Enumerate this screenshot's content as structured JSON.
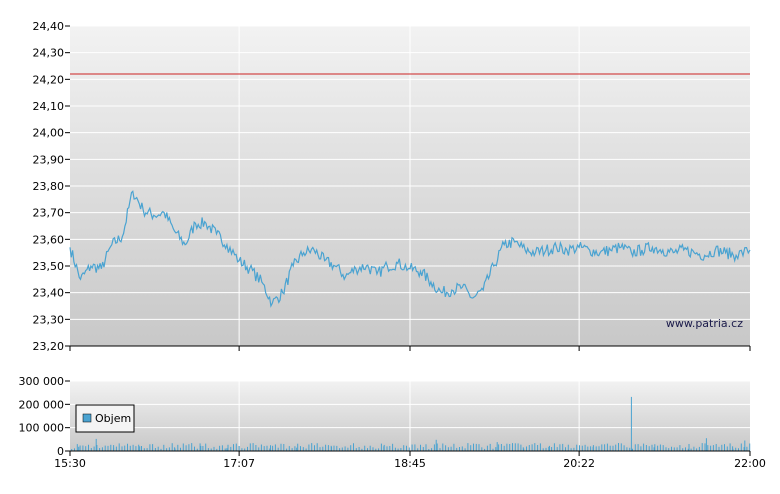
{
  "watermark": "www.patria.cz",
  "colors": {
    "price_line": "#4aa3d1",
    "reference_line": "#cc2222",
    "volume_bar": "#4aa3d1",
    "legend_swatch": "#4aa3d1",
    "gridline": "#ffffff",
    "plot_bg_top": "#f2f2f2",
    "plot_bg_bottom": "#c8c8c8"
  },
  "chart_data": [
    {
      "type": "line",
      "name": "price",
      "ylim": [
        23.2,
        24.4
      ],
      "yticks": [
        23.2,
        23.3,
        23.4,
        23.5,
        23.6,
        23.7,
        23.8,
        23.9,
        24.0,
        24.1,
        24.2,
        24.3,
        24.4
      ],
      "ytick_labels": [
        "23,20",
        "23,30",
        "23,40",
        "23,50",
        "23,60",
        "23,70",
        "23,80",
        "23,90",
        "24,00",
        "24,10",
        "24,20",
        "24,30",
        "24,40"
      ],
      "reference_value": 24.22,
      "x_domain_minutes": [
        930,
        1320
      ],
      "xgrid_minutes": [
        1027,
        1125,
        1222
      ],
      "x": [
        "15:30",
        "15:36",
        "15:42",
        "15:48",
        "15:54",
        "16:00",
        "16:06",
        "16:12",
        "16:18",
        "16:24",
        "16:30",
        "16:36",
        "16:42",
        "16:48",
        "16:54",
        "17:00",
        "17:07",
        "17:13",
        "17:20",
        "17:26",
        "17:32",
        "17:38",
        "17:44",
        "17:50",
        "17:56",
        "18:02",
        "18:08",
        "18:14",
        "18:20",
        "18:26",
        "18:32",
        "18:38",
        "18:45",
        "18:51",
        "18:57",
        "19:03",
        "19:09",
        "19:15",
        "19:21",
        "19:27",
        "19:33",
        "19:39",
        "19:45",
        "19:51",
        "19:57",
        "20:03",
        "20:09",
        "20:15",
        "20:22",
        "20:28",
        "20:34",
        "20:40",
        "20:46",
        "20:52",
        "20:58",
        "21:04",
        "21:10",
        "21:16",
        "21:22",
        "21:28",
        "21:34",
        "21:40",
        "21:46",
        "21:52",
        "22:00"
      ],
      "y": [
        23.57,
        23.45,
        23.5,
        23.49,
        23.58,
        23.61,
        23.78,
        23.71,
        23.69,
        23.7,
        23.63,
        23.58,
        23.66,
        23.66,
        23.62,
        23.58,
        23.52,
        23.49,
        23.44,
        23.36,
        23.4,
        23.5,
        23.55,
        23.56,
        23.52,
        23.5,
        23.46,
        23.49,
        23.5,
        23.47,
        23.5,
        23.51,
        23.49,
        23.48,
        23.44,
        23.4,
        23.41,
        23.42,
        23.38,
        23.41,
        23.5,
        23.58,
        23.59,
        23.56,
        23.55,
        23.56,
        23.57,
        23.56,
        23.57,
        23.56,
        23.55,
        23.56,
        23.57,
        23.55,
        23.56,
        23.57,
        23.56,
        23.55,
        23.56,
        23.55,
        23.54,
        23.56,
        23.55,
        23.54,
        23.56
      ]
    },
    {
      "type": "bar",
      "name": "volume",
      "legend": "Objem",
      "ylim": [
        0,
        300000
      ],
      "yticks": [
        0,
        100000,
        200000,
        300000
      ],
      "ytick_labels": [
        "0",
        "100 000",
        "200 000",
        "300 000"
      ],
      "xtick_labels": [
        "15:30",
        "17:07",
        "18:45",
        "20:22",
        "22:00"
      ],
      "x_domain_minutes": [
        930,
        1320
      ],
      "xgrid_minutes": [
        1027,
        1125,
        1222
      ],
      "bars": [
        [
          935,
          18000
        ],
        [
          945,
          52000
        ],
        [
          955,
          14000
        ],
        [
          970,
          20000
        ],
        [
          990,
          16000
        ],
        [
          1005,
          22000
        ],
        [
          1020,
          12000
        ],
        [
          1045,
          25000
        ],
        [
          1060,
          14000
        ],
        [
          1080,
          18000
        ],
        [
          1110,
          20000
        ],
        [
          1140,
          48000
        ],
        [
          1175,
          38000
        ],
        [
          1190,
          16000
        ],
        [
          1205,
          22000
        ],
        [
          1230,
          18000
        ],
        [
          1252,
          232000
        ],
        [
          1265,
          16000
        ],
        [
          1285,
          30000
        ],
        [
          1295,
          55000
        ],
        [
          1310,
          20000
        ],
        [
          1317,
          45000
        ]
      ]
    }
  ]
}
